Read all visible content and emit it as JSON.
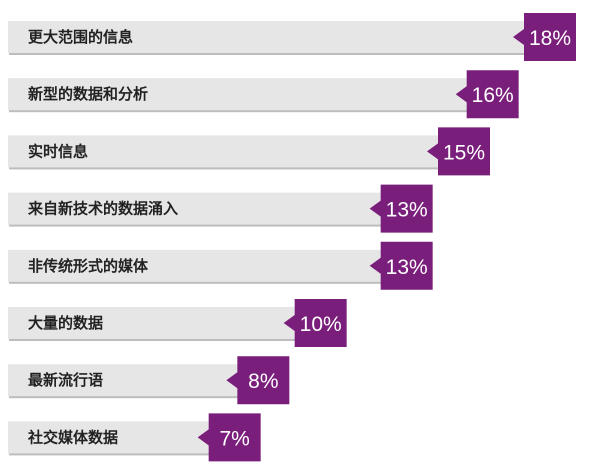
{
  "chart_data": {
    "type": "bar",
    "orientation": "horizontal",
    "categories": [
      "更大范围的信息",
      "新型的数据和分析",
      "实时信息",
      "来自新技术的数据涌入",
      "非传统形式的媒体",
      "大量的数据",
      "最新流行语",
      "社交媒体数据"
    ],
    "values": [
      18,
      16,
      15,
      13,
      13,
      10,
      8,
      7
    ],
    "value_labels": [
      "18%",
      "16%",
      "15%",
      "13%",
      "13%",
      "10%",
      "8%",
      "7%"
    ],
    "unit": "%",
    "xlim": [
      0,
      18
    ],
    "grid": false,
    "legend": "none",
    "colors": {
      "bar": "#e6e6e6",
      "bar_shadow": "#bdbdbd",
      "value_box": "#7a1e7c",
      "label_text": "#222222",
      "value_text": "#ffffff"
    }
  }
}
